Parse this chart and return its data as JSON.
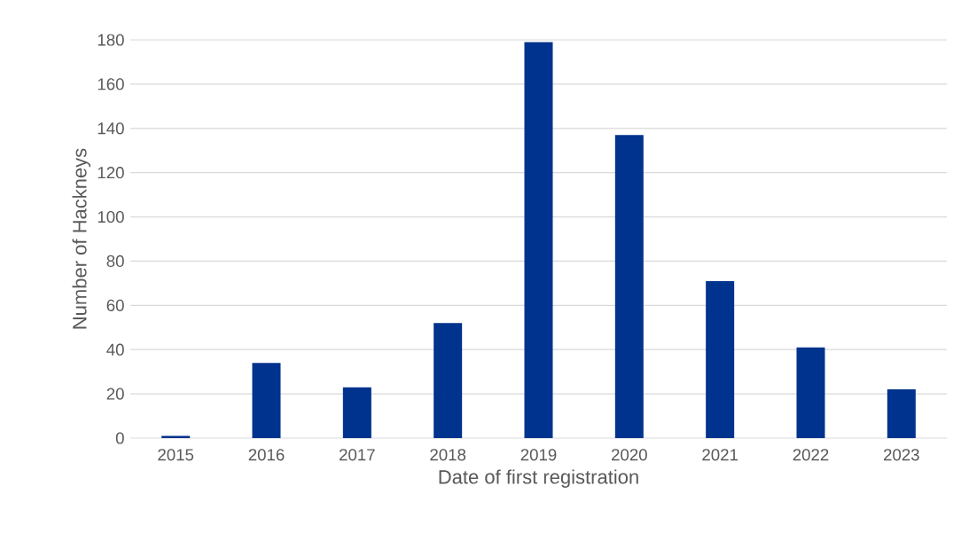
{
  "chart_data": {
    "type": "bar",
    "xlabel": "Date of first registration",
    "ylabel": "Number of Hackneys",
    "categories": [
      "2015",
      "2016",
      "2017",
      "2018",
      "2019",
      "2020",
      "2021",
      "2022",
      "2023"
    ],
    "values": [
      1,
      34,
      23,
      52,
      179,
      137,
      71,
      41,
      22
    ],
    "color": "#00338d",
    "ylim": [
      0,
      180
    ],
    "yticks": [
      0,
      20,
      40,
      60,
      80,
      100,
      120,
      140,
      160,
      180
    ],
    "grid": "y"
  }
}
